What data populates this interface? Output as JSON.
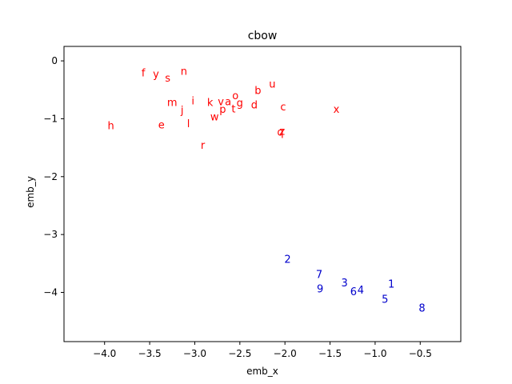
{
  "chart_data": {
    "type": "scatter",
    "title": "cbow",
    "xlabel": "emb_x",
    "ylabel": "emb_y",
    "xlim": [
      -4.45,
      -0.05
    ],
    "ylim": [
      -4.85,
      0.25
    ],
    "xticks": [
      -4.0,
      -3.5,
      -3.0,
      -2.5,
      -2.0,
      -1.5,
      -1.0,
      -0.5
    ],
    "xtick_labels": [
      "−4.0",
      "−3.5",
      "−3.0",
      "−2.5",
      "−2.0",
      "−1.5",
      "−1.0",
      "−0.5"
    ],
    "yticks": [
      0,
      -1,
      -2,
      -3,
      -4
    ],
    "ytick_labels": [
      "0",
      "−1",
      "−2",
      "−3",
      "−4"
    ],
    "grid": false,
    "series": [
      {
        "color": "#ff0000",
        "points": [
          {
            "label": "f",
            "x": -3.57,
            "y": -0.2
          },
          {
            "label": "y",
            "x": -3.43,
            "y": -0.22
          },
          {
            "label": "s",
            "x": -3.3,
            "y": -0.29
          },
          {
            "label": "n",
            "x": -3.12,
            "y": -0.17
          },
          {
            "label": "u",
            "x": -2.14,
            "y": -0.39
          },
          {
            "label": "b",
            "x": -2.3,
            "y": -0.5
          },
          {
            "label": "o",
            "x": -2.55,
            "y": -0.59
          },
          {
            "label": "m",
            "x": -3.25,
            "y": -0.71
          },
          {
            "label": "i",
            "x": -3.02,
            "y": -0.68
          },
          {
            "label": "k",
            "x": -2.83,
            "y": -0.71
          },
          {
            "label": "v",
            "x": -2.71,
            "y": -0.7
          },
          {
            "label": "a",
            "x": -2.63,
            "y": -0.7
          },
          {
            "label": "g",
            "x": -2.5,
            "y": -0.72
          },
          {
            "label": "d",
            "x": -2.34,
            "y": -0.75
          },
          {
            "label": "c",
            "x": -2.02,
            "y": -0.79
          },
          {
            "label": "x",
            "x": -1.43,
            "y": -0.83
          },
          {
            "label": "j",
            "x": -3.14,
            "y": -0.84
          },
          {
            "label": "p",
            "x": -2.69,
            "y": -0.83
          },
          {
            "label": "t",
            "x": -2.57,
            "y": -0.82
          },
          {
            "label": "w",
            "x": -2.78,
            "y": -0.96
          },
          {
            "label": "h",
            "x": -3.93,
            "y": -1.11
          },
          {
            "label": "e",
            "x": -3.37,
            "y": -1.1
          },
          {
            "label": "l",
            "x": -3.07,
            "y": -1.08
          },
          {
            "label": "q",
            "x": -2.05,
            "y": -1.22
          },
          {
            "label": "z",
            "x": -2.03,
            "y": -1.21
          },
          {
            "label": "r",
            "x": -2.91,
            "y": -1.45
          }
        ]
      },
      {
        "color": "#0000cc",
        "points": [
          {
            "label": "2",
            "x": -1.97,
            "y": -3.42
          },
          {
            "label": "7",
            "x": -1.62,
            "y": -3.68
          },
          {
            "label": "9",
            "x": -1.61,
            "y": -3.93
          },
          {
            "label": "3",
            "x": -1.34,
            "y": -3.83
          },
          {
            "label": "6",
            "x": -1.24,
            "y": -3.98
          },
          {
            "label": "4",
            "x": -1.16,
            "y": -3.95
          },
          {
            "label": "1",
            "x": -0.82,
            "y": -3.85
          },
          {
            "label": "5",
            "x": -0.89,
            "y": -4.11
          },
          {
            "label": "8",
            "x": -0.48,
            "y": -4.26
          }
        ]
      }
    ]
  }
}
